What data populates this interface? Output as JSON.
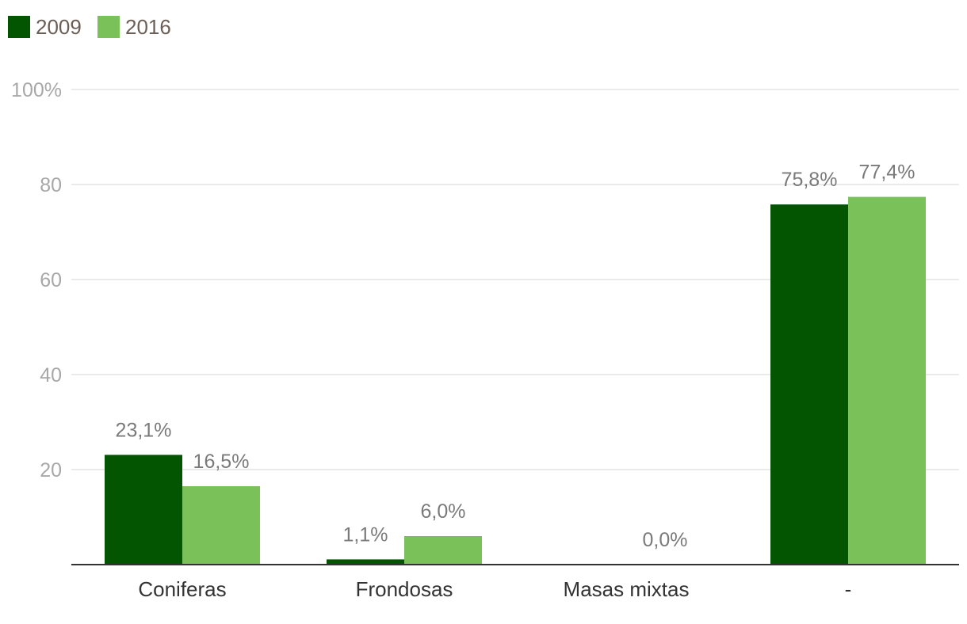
{
  "chart_data": {
    "type": "bar",
    "categories": [
      "Coniferas",
      "Frondosas",
      "Masas mixtas",
      "-"
    ],
    "series": [
      {
        "name": "2009",
        "color": "#035502",
        "values": [
          23.1,
          1.1,
          null,
          75.8
        ],
        "labels": [
          "23,1%",
          "1,1%",
          "",
          "75,8%"
        ]
      },
      {
        "name": "2016",
        "color": "#79c158",
        "values": [
          16.5,
          6.0,
          0.0,
          77.4
        ],
        "labels": [
          "16,5%",
          "6,0%",
          "0,0%",
          "77,4%"
        ]
      }
    ],
    "yticks": [
      {
        "value": 20,
        "label": "20"
      },
      {
        "value": 40,
        "label": "40"
      },
      {
        "value": 60,
        "label": "60"
      },
      {
        "value": 80,
        "label": "80"
      },
      {
        "value": 100,
        "label": "100%"
      }
    ],
    "ylim": [
      0,
      100
    ],
    "grid": true,
    "legend": "top-left"
  }
}
